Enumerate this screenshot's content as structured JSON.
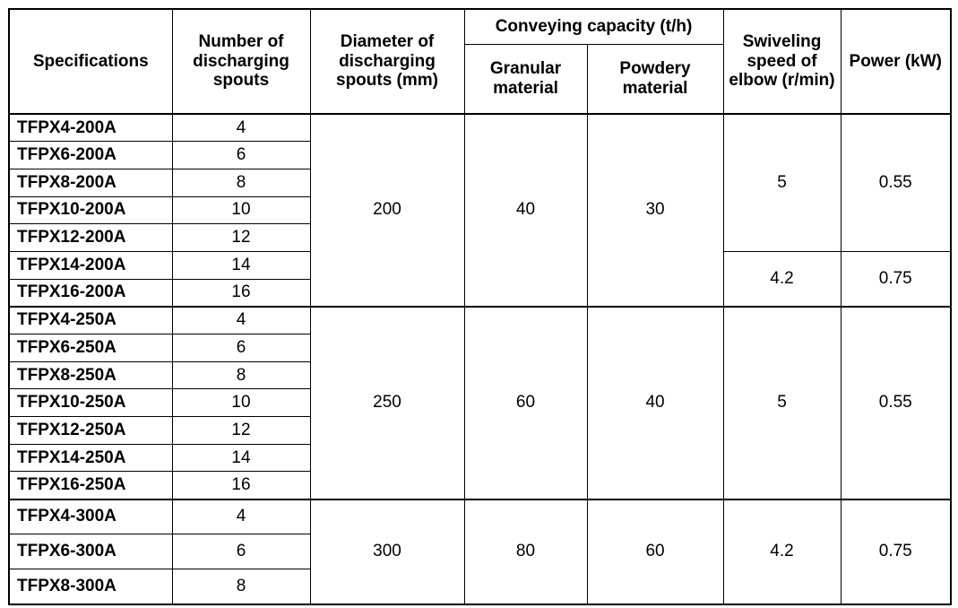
{
  "headers": {
    "specifications": "Specifications",
    "number_of_spouts": "Number of discharging spouts",
    "diameter": "Diameter of discharging spouts (mm)",
    "capacity_group": "Conveying capacity (t/h)",
    "granular": "Granular material",
    "powdery": "Powdery material",
    "swiveling": "Swiveling speed of elbow (r/min)",
    "power": "Power (kW)"
  },
  "models": [
    {
      "name": "TFPX4-200A",
      "spouts": "4"
    },
    {
      "name": "TFPX6-200A",
      "spouts": "6"
    },
    {
      "name": "TFPX8-200A",
      "spouts": "8"
    },
    {
      "name": "TFPX10-200A",
      "spouts": "10"
    },
    {
      "name": "TFPX12-200A",
      "spouts": "12"
    },
    {
      "name": "TFPX14-200A",
      "spouts": "14"
    },
    {
      "name": "TFPX16-200A",
      "spouts": "16"
    },
    {
      "name": "TFPX4-250A",
      "spouts": "4"
    },
    {
      "name": "TFPX6-250A",
      "spouts": "6"
    },
    {
      "name": "TFPX8-250A",
      "spouts": "8"
    },
    {
      "name": "TFPX10-250A",
      "spouts": "10"
    },
    {
      "name": "TFPX12-250A",
      "spouts": "12"
    },
    {
      "name": "TFPX14-250A",
      "spouts": "14"
    },
    {
      "name": "TFPX16-250A",
      "spouts": "16"
    },
    {
      "name": "TFPX4-300A",
      "spouts": "4"
    },
    {
      "name": "TFPX6-300A",
      "spouts": "6"
    },
    {
      "name": "TFPX8-300A",
      "spouts": "8"
    }
  ],
  "groups": {
    "g200": {
      "diameter": "200",
      "granular": "40",
      "powdery": "30"
    },
    "g250": {
      "diameter": "250",
      "granular": "60",
      "powdery": "40",
      "speed": "5",
      "power": "0.55"
    },
    "g300": {
      "diameter": "300",
      "granular": "80",
      "powdery": "60",
      "speed": "4.2",
      "power": "0.75"
    }
  },
  "subgroups": {
    "s200a": {
      "speed": "5",
      "power": "0.55"
    },
    "s200b": {
      "speed": "4.2",
      "power": "0.75"
    }
  }
}
